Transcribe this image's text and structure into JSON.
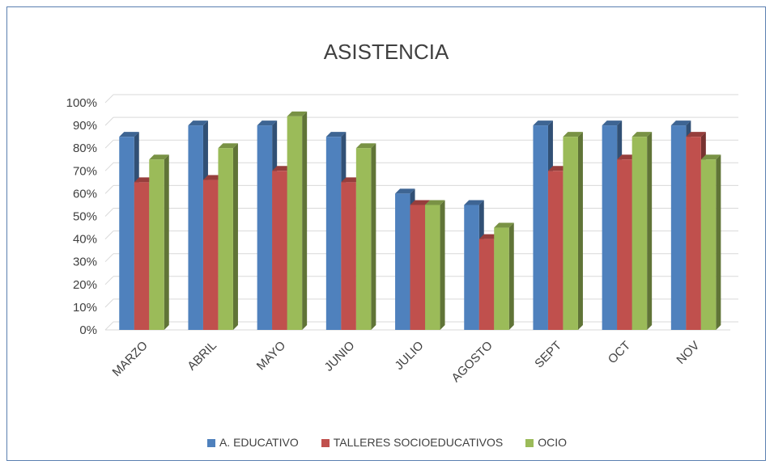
{
  "chart_data": {
    "type": "bar",
    "title": "ASISTENCIA",
    "categories": [
      "MARZO",
      "ABRIL",
      "MAYO",
      "JUNIO",
      "JULIO",
      "AGOSTO",
      "SEPT",
      "OCT",
      "NOV"
    ],
    "series": [
      {
        "name": "A. EDUCATIVO",
        "color": "#4f81bd",
        "values": [
          85,
          90,
          90,
          85,
          60,
          55,
          90,
          90,
          90
        ]
      },
      {
        "name": "TALLERES SOCIOEDUCATIVOS",
        "color": "#c0504d",
        "values": [
          65,
          66,
          70,
          65,
          55,
          40,
          70,
          75,
          85
        ]
      },
      {
        "name": "OCIO",
        "color": "#9bbb59",
        "values": [
          75,
          80,
          94,
          80,
          55,
          45,
          85,
          85,
          75
        ]
      }
    ],
    "y_ticks": [
      "0%",
      "10%",
      "20%",
      "30%",
      "40%",
      "50%",
      "60%",
      "70%",
      "80%",
      "90%",
      "100%"
    ],
    "ylim": [
      0,
      100
    ],
    "grid": true,
    "legend_position": "bottom",
    "style": "3d-clustered-column"
  }
}
